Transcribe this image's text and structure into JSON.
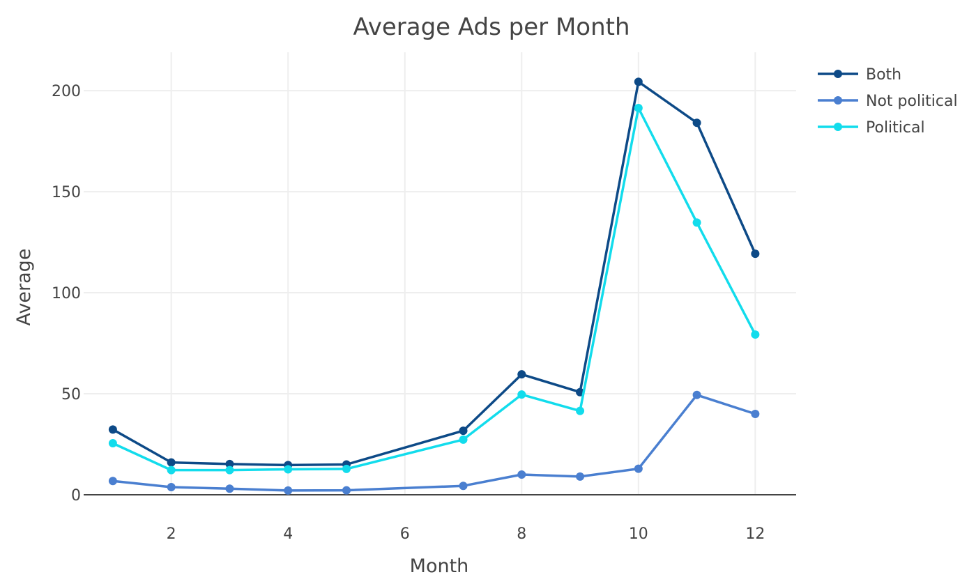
{
  "chart_data": {
    "type": "line",
    "title": "Average Ads per Month",
    "xlabel": "Month",
    "ylabel": "Average",
    "xlim": [
      0.5,
      12.7
    ],
    "ylim": [
      0,
      219
    ],
    "x_ticks": [
      2,
      4,
      6,
      8,
      10,
      12
    ],
    "y_ticks": [
      0,
      50,
      100,
      150,
      200
    ],
    "grid": true,
    "legend_position": "top-right",
    "series": [
      {
        "name": "Both",
        "color": "#0d4a87",
        "x": [
          1,
          2,
          3,
          4,
          5,
          7,
          8,
          9,
          10,
          11,
          12
        ],
        "values": [
          32.3,
          16.0,
          15.2,
          14.7,
          15.0,
          31.7,
          59.6,
          50.8,
          204.4,
          184.1,
          119.3
        ]
      },
      {
        "name": "Not political",
        "color": "#4a7fd0",
        "x": [
          1,
          2,
          3,
          4,
          5,
          7,
          8,
          9,
          10,
          11,
          12
        ],
        "values": [
          6.8,
          3.8,
          3.0,
          2.1,
          2.2,
          4.4,
          10.0,
          9.0,
          12.9,
          49.4,
          40.0
        ]
      },
      {
        "name": "Political",
        "color": "#12dcec",
        "x": [
          1,
          2,
          3,
          4,
          5,
          7,
          8,
          9,
          10,
          11,
          12
        ],
        "values": [
          25.5,
          12.2,
          12.2,
          12.6,
          12.8,
          27.3,
          49.6,
          41.5,
          191.4,
          134.7,
          79.3
        ]
      }
    ]
  }
}
